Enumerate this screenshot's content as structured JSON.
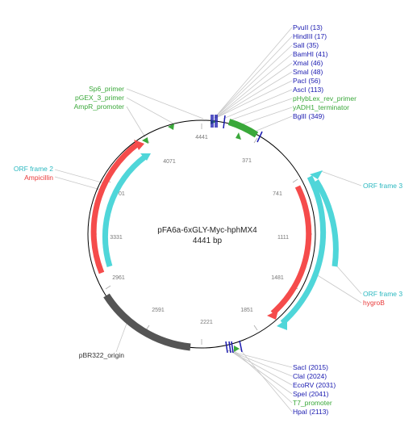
{
  "plasmid": {
    "name": "pFA6a-6xGLY-Myc-hphMX4",
    "size_label": "4441 bp",
    "total_bp": 4441
  },
  "colors": {
    "backbone": "#000000",
    "enzyme": "#1a1ab0",
    "primer": "#3aa83a",
    "orf": "#4fd6d9",
    "gene": "#f54b4b",
    "origin": "#555555",
    "tick_label": "#777777",
    "leader": "#bdbdbd"
  },
  "ticks": [
    "4441",
    "371",
    "741",
    "1111",
    "1481",
    "1851",
    "2221",
    "2591",
    "2961",
    "3331",
    "3701",
    "4071"
  ],
  "labels": {
    "top_right": [
      "PvuII (13)",
      "HindIII (17)",
      "SalI (35)",
      "BamHI (41)",
      "XmaI (46)",
      "SmaI (48)",
      "PacI (56)",
      "AscI (113)",
      "pHybLex_rev_primer",
      "yADH1_terminator",
      "BglII (349)"
    ],
    "top_left": [
      "Sp6_primer",
      "pGEX_3_primer",
      "AmpR_promoter"
    ],
    "left": [
      "ORF frame 2",
      "Ampicillin"
    ],
    "right_top": "ORF frame 3",
    "right_bottom": [
      "ORF frame 3",
      "hygroB"
    ],
    "bottom_left": "pBR322_origin",
    "bottom_right": [
      "SacI (2015)",
      "ClaI (2024)",
      "EcoRV (2031)",
      "SpeI (2041)",
      "T7_promoter",
      "HpaI (2113)"
    ]
  }
}
